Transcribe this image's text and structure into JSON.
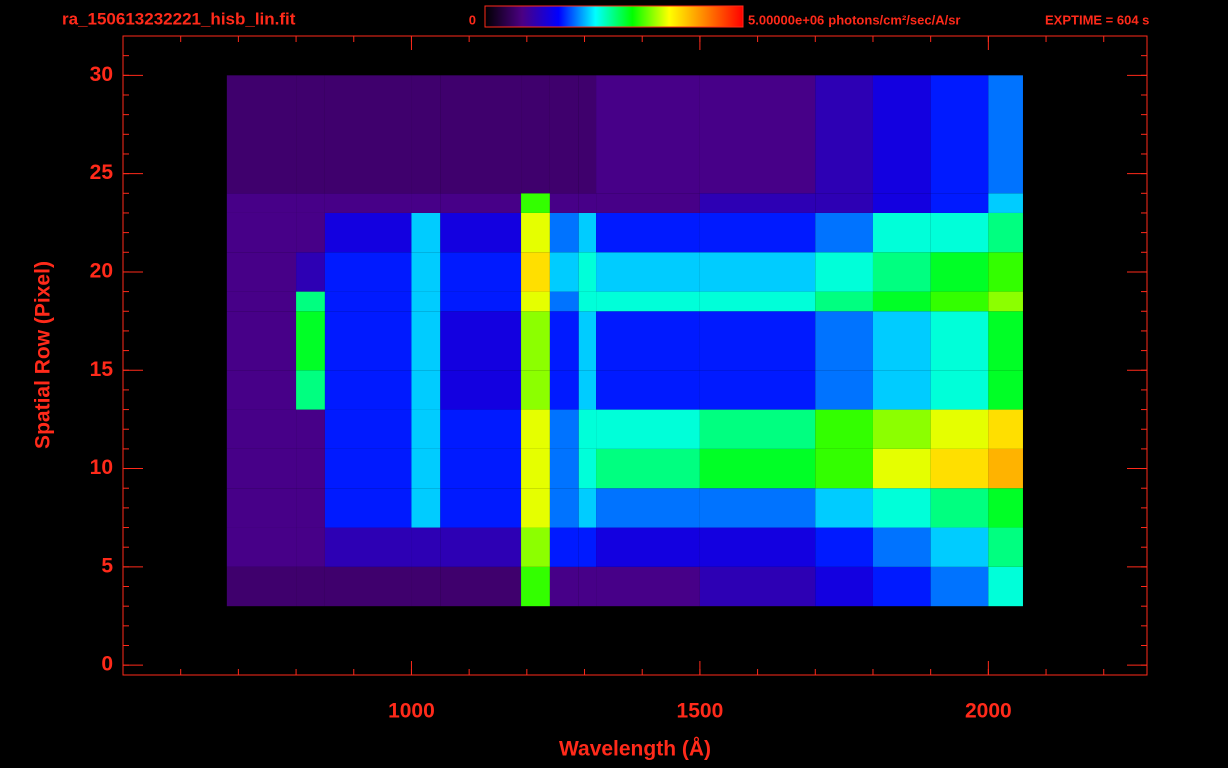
{
  "chart_data": {
    "type": "heatmap",
    "title": "ra_150613232221_hisb_lin.fit",
    "annotation": "EXPTIME = 604 s",
    "colorbar_label": "photons/cm²/sec/A/sr",
    "colorbar_lim": [
      0,
      5000000
    ],
    "colorbar_ticks": [
      0,
      {
        "value": 5000000,
        "label": "5.00000e+06"
      }
    ],
    "colormap": [
      "#000000",
      "#4b0082",
      "#0000ff",
      "#00ffff",
      "#00ff00",
      "#ffff00",
      "#ff8000",
      "#ff0000"
    ],
    "x_label": "Wavelength (Å)",
    "y_label": "Spatial Row (Pixel)",
    "xlim": [
      500,
      2275
    ],
    "ylim": [
      -0.5,
      32
    ],
    "xticks": [
      1000,
      1500,
      2000
    ],
    "yticks": [
      0,
      5,
      10,
      15,
      20,
      25,
      30
    ],
    "xminor_ticks": [
      600,
      700,
      800,
      900,
      1000,
      1100,
      1200,
      1300,
      1400,
      1500,
      1600,
      1700,
      1800,
      1900,
      2000,
      2100,
      2200
    ],
    "yminor_ticks": [
      0,
      1,
      2,
      3,
      4,
      5,
      6,
      7,
      8,
      9,
      10,
      11,
      12,
      13,
      14,
      15,
      16,
      17,
      18,
      19,
      20,
      21,
      22,
      23,
      24,
      25,
      26,
      27,
      28,
      29,
      30,
      31
    ],
    "x_edges": [
      680,
      800,
      850,
      1000,
      1050,
      1190,
      1240,
      1290,
      1320,
      1500,
      1700,
      1800,
      1900,
      2000,
      2060
    ],
    "y_edges": [
      3,
      5,
      7,
      9,
      11,
      13,
      15,
      18,
      19,
      21,
      23,
      24,
      30
    ],
    "values": [
      [
        600000,
        600000,
        600000,
        600000,
        600000,
        3000000,
        750000,
        750000,
        750000,
        1000000,
        1250000,
        1500000,
        1750000,
        2250000
      ],
      [
        750000,
        750000,
        1000000,
        1000000,
        1000000,
        3250000,
        1500000,
        1500000,
        1250000,
        1250000,
        1500000,
        1750000,
        2000000,
        2500000
      ],
      [
        750000,
        750000,
        1500000,
        2000000,
        1500000,
        3500000,
        1750000,
        2000000,
        1750000,
        1750000,
        2000000,
        2250000,
        2500000,
        2750000
      ],
      [
        750000,
        750000,
        1500000,
        2000000,
        1500000,
        3500000,
        1750000,
        2250000,
        2500000,
        2750000,
        3000000,
        3500000,
        3750000,
        4000000
      ],
      [
        750000,
        750000,
        1500000,
        2000000,
        1500000,
        3500000,
        1750000,
        2250000,
        2250000,
        2500000,
        3000000,
        3250000,
        3500000,
        3750000
      ],
      [
        750000,
        2500000,
        1500000,
        2000000,
        1250000,
        3250000,
        1500000,
        2000000,
        1500000,
        1500000,
        1750000,
        2000000,
        2250000,
        2750000
      ],
      [
        750000,
        2750000,
        1500000,
        2000000,
        1250000,
        3250000,
        1500000,
        2000000,
        1500000,
        1500000,
        1750000,
        2000000,
        2250000,
        2750000
      ],
      [
        750000,
        2500000,
        1500000,
        2000000,
        1500000,
        3500000,
        1750000,
        2250000,
        2250000,
        2250000,
        2500000,
        2750000,
        3000000,
        3250000
      ],
      [
        750000,
        1000000,
        1500000,
        2000000,
        1500000,
        3750000,
        2000000,
        2250000,
        2000000,
        2000000,
        2250000,
        2500000,
        2750000,
        3000000
      ],
      [
        750000,
        750000,
        1250000,
        2000000,
        1250000,
        3500000,
        1750000,
        2000000,
        1500000,
        1500000,
        1750000,
        2250000,
        2250000,
        2500000
      ],
      [
        750000,
        750000,
        750000,
        750000,
        750000,
        3000000,
        750000,
        750000,
        750000,
        1000000,
        1000000,
        1250000,
        1500000,
        2000000
      ],
      [
        600000,
        600000,
        600000,
        600000,
        600000,
        600000,
        600000,
        600000,
        750000,
        750000,
        1000000,
        1250000,
        1500000,
        1750000
      ]
    ]
  }
}
